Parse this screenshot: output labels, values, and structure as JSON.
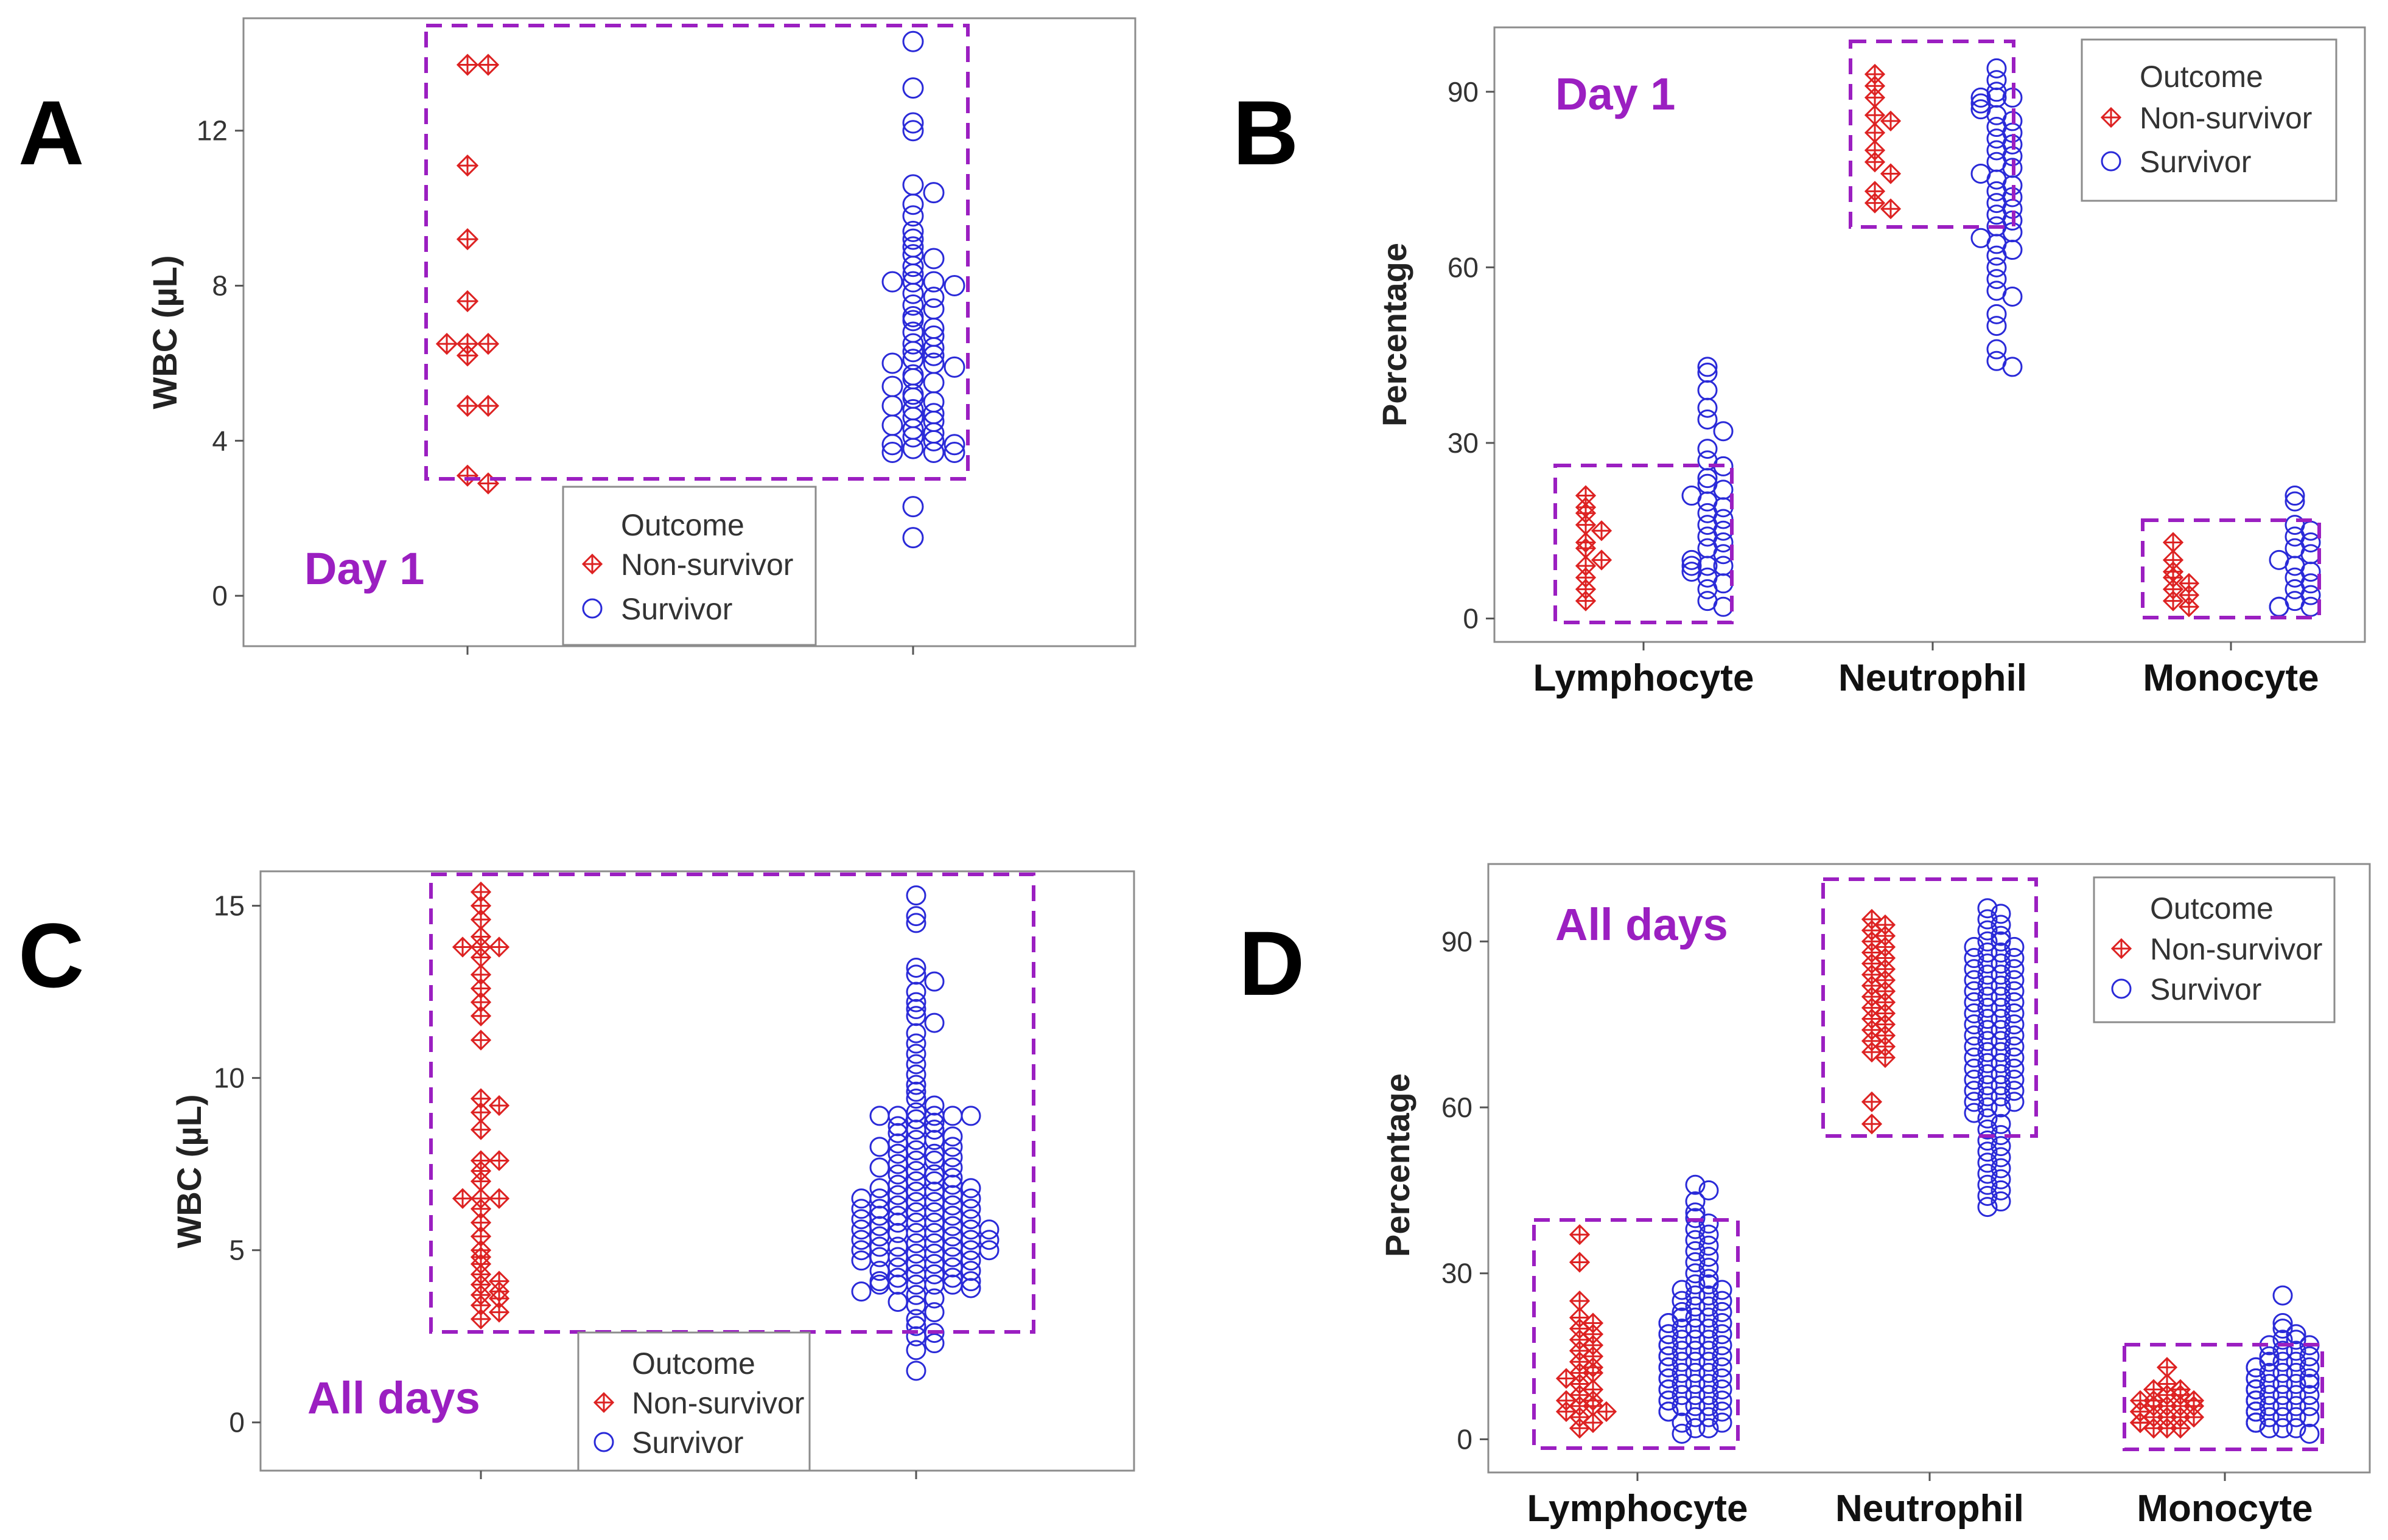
{
  "colors": {
    "non_survivor": "#dd2222",
    "survivor": "#2a2ad8",
    "annotation": "#9b1fc1"
  },
  "legend": {
    "title": "Outcome",
    "items": [
      "Non-survivor",
      "Survivor"
    ]
  },
  "chart_data": [
    {
      "panel": "A",
      "type": "scatter",
      "subtype": "dot-strip",
      "annotation": "Day 1",
      "ylabel": "WBC (µL)",
      "ylim": [
        -1.3,
        14.9
      ],
      "yticks": [
        0,
        4,
        8,
        12
      ],
      "legend_position": "bottom-center",
      "categories": [
        "Non-survivor",
        "Survivor"
      ],
      "series": [
        {
          "name": "Non-survivor",
          "values": [
            13.7,
            13.7,
            11.1,
            9.2,
            7.6,
            6.5,
            6.5,
            6.5,
            6.2,
            4.9,
            4.9,
            3.1,
            2.9
          ]
        },
        {
          "name": "Survivor",
          "values": [
            14.3,
            13.1,
            12.2,
            12.0,
            10.6,
            10.4,
            10.1,
            9.8,
            9.4,
            9.2,
            9.0,
            8.8,
            8.7,
            8.5,
            8.3,
            8.1,
            8.1,
            8.1,
            8.0,
            7.8,
            7.7,
            7.5,
            7.4,
            7.2,
            7.1,
            6.9,
            6.8,
            6.7,
            6.5,
            6.4,
            6.3,
            6.2,
            6.1,
            6.0,
            6.0,
            5.9,
            5.7,
            5.6,
            5.5,
            5.4,
            5.2,
            5.1,
            5.0,
            4.9,
            4.8,
            4.7,
            4.6,
            4.5,
            4.4,
            4.3,
            4.2,
            4.1,
            4.0,
            3.9,
            3.9,
            3.8,
            3.7,
            3.7,
            3.7,
            2.3,
            1.5
          ]
        }
      ]
    },
    {
      "panel": "B",
      "type": "scatter",
      "subtype": "dot-strip",
      "annotation": "Day 1",
      "ylabel": "Percentage",
      "ylim": [
        -4,
        101
      ],
      "yticks": [
        0,
        30,
        60,
        90
      ],
      "legend_position": "top-right",
      "categories": [
        "Lymphocyte",
        "Neutrophil",
        "Monocyte"
      ],
      "series": [
        {
          "name": "Non-survivor",
          "groups": [
            [
              21,
              19,
              18,
              16,
              15,
              13,
              12,
              10,
              9,
              7,
              5,
              3
            ],
            [
              93,
              91,
              89,
              86,
              85,
              83,
              80,
              78,
              76,
              73,
              71,
              70
            ],
            [
              13,
              10,
              8,
              7,
              6,
              5,
              4,
              3,
              2
            ]
          ]
        },
        {
          "name": "Survivor",
          "groups": [
            [
              43,
              42,
              39,
              36,
              34,
              32,
              29,
              27,
              26,
              24,
              23,
              22,
              21,
              20,
              19,
              18,
              17,
              16,
              15,
              14,
              13,
              12,
              11,
              10,
              9,
              9,
              9,
              8,
              7,
              6,
              5,
              3,
              2
            ],
            [
              94,
              92,
              90,
              89,
              89,
              89,
              88,
              87,
              86,
              85,
              84,
              83,
              82,
              81,
              80,
              79,
              78,
              77,
              76,
              75,
              74,
              73,
              72,
              71,
              70,
              69,
              68,
              67,
              66,
              65,
              64,
              63,
              62,
              60,
              58,
              56,
              55,
              52,
              50,
              46,
              44,
              43
            ],
            [
              21,
              20,
              16,
              15,
              14,
              13,
              12,
              11,
              10,
              9,
              8,
              7,
              6,
              5,
              4,
              3,
              2,
              2,
              2
            ]
          ]
        }
      ]
    },
    {
      "panel": "C",
      "type": "scatter",
      "subtype": "dot-strip",
      "annotation": "All days",
      "ylabel": "WBC (µL)",
      "ylim": [
        -1.4,
        16.0
      ],
      "yticks": [
        0,
        5,
        10,
        15
      ],
      "legend_position": "bottom-center",
      "categories": [
        "Non-survivor",
        "Survivor"
      ],
      "series": [
        {
          "name": "Non-survivor",
          "values": [
            15.4,
            15.0,
            14.6,
            14.1,
            13.8,
            13.8,
            13.8,
            13.5,
            13.0,
            12.6,
            12.2,
            11.8,
            11.1,
            9.4,
            9.2,
            9.0,
            8.5,
            7.6,
            7.6,
            7.3,
            7.0,
            6.5,
            6.5,
            6.5,
            6.2,
            5.8,
            5.4,
            5.0,
            4.8,
            4.6,
            4.3,
            4.1,
            4.0,
            3.8,
            3.7,
            3.6,
            3.4,
            3.2,
            3.0
          ]
        },
        {
          "name": "Survivor",
          "values": [
            15.3,
            14.7,
            14.5,
            13.2,
            13.0,
            12.8,
            12.5,
            12.2,
            12.0,
            11.8,
            11.6,
            11.3,
            11.0,
            10.7,
            10.4,
            10.1,
            9.8,
            9.6,
            9.4,
            9.2,
            9.0,
            8.9,
            8.9,
            8.9,
            8.9,
            8.9,
            8.8,
            8.7,
            8.6,
            8.5,
            8.5,
            8.4,
            8.3,
            8.2,
            8.2,
            8.1,
            8.0,
            8.0,
            7.9,
            7.8,
            7.8,
            7.7,
            7.6,
            7.6,
            7.5,
            7.4,
            7.4,
            7.3,
            7.2,
            7.2,
            7.1,
            7.0,
            7.0,
            6.9,
            6.9,
            6.8,
            6.8,
            6.7,
            6.7,
            6.6,
            6.6,
            6.5,
            6.5,
            6.5,
            6.4,
            6.4,
            6.3,
            6.3,
            6.2,
            6.2,
            6.2,
            6.1,
            6.1,
            6.0,
            6.0,
            6.0,
            5.9,
            5.9,
            5.8,
            5.8,
            5.8,
            5.7,
            5.7,
            5.6,
            5.6,
            5.6,
            5.5,
            5.5,
            5.5,
            5.4,
            5.4,
            5.3,
            5.3,
            5.3,
            5.2,
            5.2,
            5.1,
            5.1,
            5.1,
            5.0,
            5.0,
            5.0,
            4.9,
            4.9,
            4.8,
            4.8,
            4.8,
            4.7,
            4.7,
            4.6,
            4.6,
            4.5,
            4.5,
            4.4,
            4.4,
            4.3,
            4.3,
            4.2,
            4.2,
            4.1,
            4.1,
            4.0,
            4.0,
            4.0,
            4.0,
            4.0,
            3.9,
            3.8,
            3.7,
            3.6,
            3.5,
            3.4,
            3.2,
            3.0,
            2.8,
            2.6,
            2.5,
            2.3,
            2.1,
            1.5
          ]
        }
      ]
    },
    {
      "panel": "D",
      "type": "scatter",
      "subtype": "dot-strip",
      "annotation": "All days",
      "ylabel": "Percentage",
      "ylim": [
        -6,
        104
      ],
      "yticks": [
        0,
        30,
        60,
        90
      ],
      "legend_position": "top-right",
      "categories": [
        "Lymphocyte",
        "Neutrophil",
        "Monocyte"
      ],
      "series": [
        {
          "name": "Non-survivor",
          "groups": [
            [
              37,
              32,
              25,
              22,
              21,
              20,
              19,
              18,
              17,
              16,
              15,
              14,
              13,
              12,
              12,
              11,
              10,
              9,
              8,
              7,
              7,
              6,
              6,
              5,
              5,
              4,
              3,
              2
            ],
            [
              94,
              93,
              92,
              91,
              90,
              89,
              88,
              87,
              86,
              85,
              84,
              83,
              82,
              81,
              80,
              79,
              78,
              77,
              76,
              75,
              74,
              73,
              72,
              71,
              70,
              69,
              61,
              57
            ],
            [
              13,
              10,
              9,
              9,
              8,
              8,
              7,
              7,
              7,
              6,
              6,
              6,
              6,
              5,
              5,
              5,
              5,
              4,
              4,
              4,
              4,
              3,
              3,
              3,
              3,
              2,
              2,
              2
            ]
          ]
        },
        {
          "name": "Survivor",
          "groups": [
            [
              46,
              45,
              43,
              41,
              40,
              39,
              38,
              37,
              36,
              35,
              34,
              33,
              32,
              31,
              30,
              29,
              28,
              28,
              27,
              27,
              26,
              26,
              25,
              25,
              24,
              24,
              23,
              23,
              22,
              22,
              22,
              21,
              21,
              21,
              20,
              20,
              20,
              19,
              19,
              19,
              18,
              18,
              18,
              17,
              17,
              17,
              16,
              16,
              16,
              15,
              15,
              15,
              14,
              14,
              14,
              13,
              13,
              13,
              12,
              12,
              12,
              11,
              11,
              11,
              10,
              10,
              10,
              9,
              9,
              9,
              8,
              8,
              8,
              7,
              7,
              7,
              6,
              6,
              6,
              5,
              5,
              5,
              4,
              4,
              3,
              3,
              2,
              2,
              1
            ],
            [
              96,
              95,
              94,
              93,
              92,
              91,
              90,
              90,
              89,
              89,
              88,
              88,
              87,
              87,
              86,
              86,
              85,
              85,
              84,
              84,
              83,
              83,
              82,
              82,
              81,
              81,
              80,
              80,
              79,
              79,
              78,
              78,
              77,
              77,
              76,
              76,
              75,
              75,
              74,
              74,
              73,
              73,
              72,
              72,
              71,
              71,
              70,
              70,
              69,
              69,
              68,
              68,
              67,
              67,
              66,
              66,
              65,
              65,
              64,
              64,
              63,
              63,
              62,
              62,
              61,
              61,
              60,
              60,
              59,
              58,
              57,
              56,
              55,
              54,
              53,
              52,
              51,
              50,
              49,
              48,
              47,
              46,
              45,
              44,
              43,
              42
            ],
            [
              26,
              21,
              20,
              19,
              18,
              18,
              17,
              17,
              16,
              16,
              15,
              15,
              14,
              14,
              14,
              13,
              13,
              13,
              12,
              12,
              12,
              11,
              11,
              11,
              10,
              10,
              10,
              10,
              9,
              9,
              9,
              9,
              8,
              8,
              8,
              8,
              7,
              7,
              7,
              7,
              6,
              6,
              6,
              6,
              5,
              5,
              5,
              5,
              4,
              4,
              4,
              4,
              3,
              3,
              3,
              3,
              2,
              2,
              2,
              1
            ]
          ]
        }
      ]
    }
  ]
}
